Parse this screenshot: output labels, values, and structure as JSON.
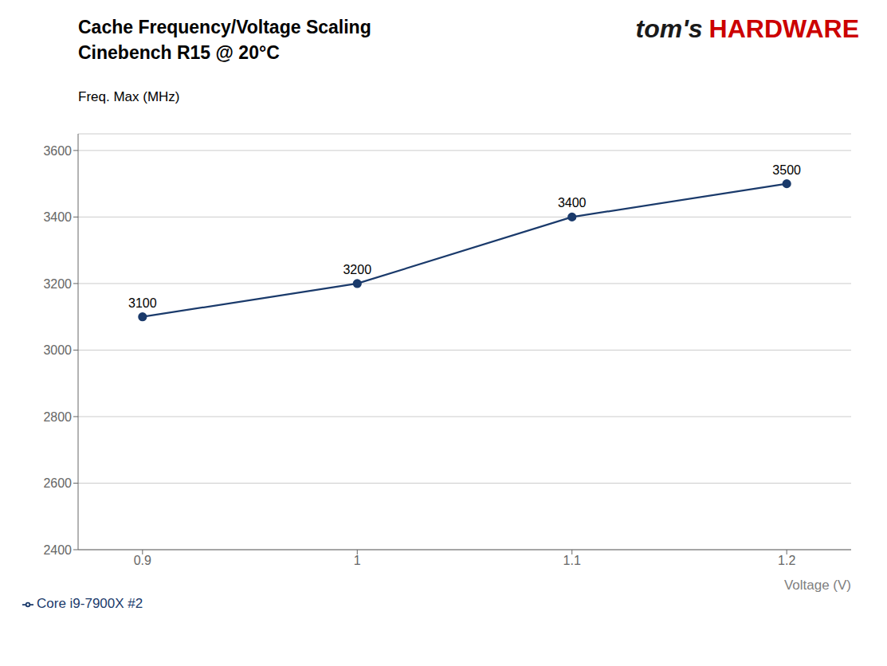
{
  "chart_data": {
    "type": "line",
    "title": "Cache Frequency/Voltage Scaling",
    "subtitle": "Cinebench R15 @ 20°C",
    "y_label": "Freq. Max (MHz)",
    "x_label": "Voltage (V)",
    "annotations": [
      {
        "text": "tom's",
        "color": "#1a1a1a"
      },
      {
        "text": "HARDWARE",
        "color": "#cc0000"
      }
    ],
    "x": [
      0.9,
      1.0,
      1.1,
      1.2
    ],
    "series": [
      {
        "name": "Core i9-7900X #2",
        "color": "#1a3a6b",
        "marker": "circle",
        "values": [
          3100,
          3200,
          3400,
          3500
        ]
      }
    ],
    "xlim": [
      0.87,
      1.23
    ],
    "xticks": [
      0.9,
      1.0,
      1.1,
      1.2
    ],
    "ylim": [
      2400,
      3650
    ],
    "yticks": [
      2400,
      2600,
      2800,
      3000,
      3200,
      3400,
      3600
    ],
    "grid": "y",
    "legend": "bottom left",
    "data_labels": true
  }
}
